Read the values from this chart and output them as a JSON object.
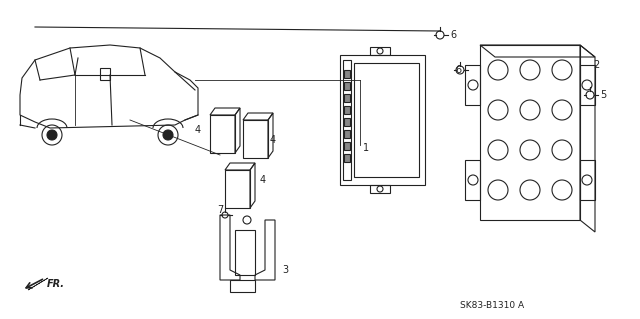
{
  "title": "",
  "background_color": "#ffffff",
  "diagram_code": "SK83-B1310",
  "diagram_suffix": "A",
  "fr_label": "FR.",
  "part_numbers": [
    1,
    2,
    3,
    4,
    5,
    6,
    7
  ],
  "line_color": "#222222",
  "text_color": "#222222",
  "figsize": [
    6.4,
    3.19
  ],
  "dpi": 100
}
